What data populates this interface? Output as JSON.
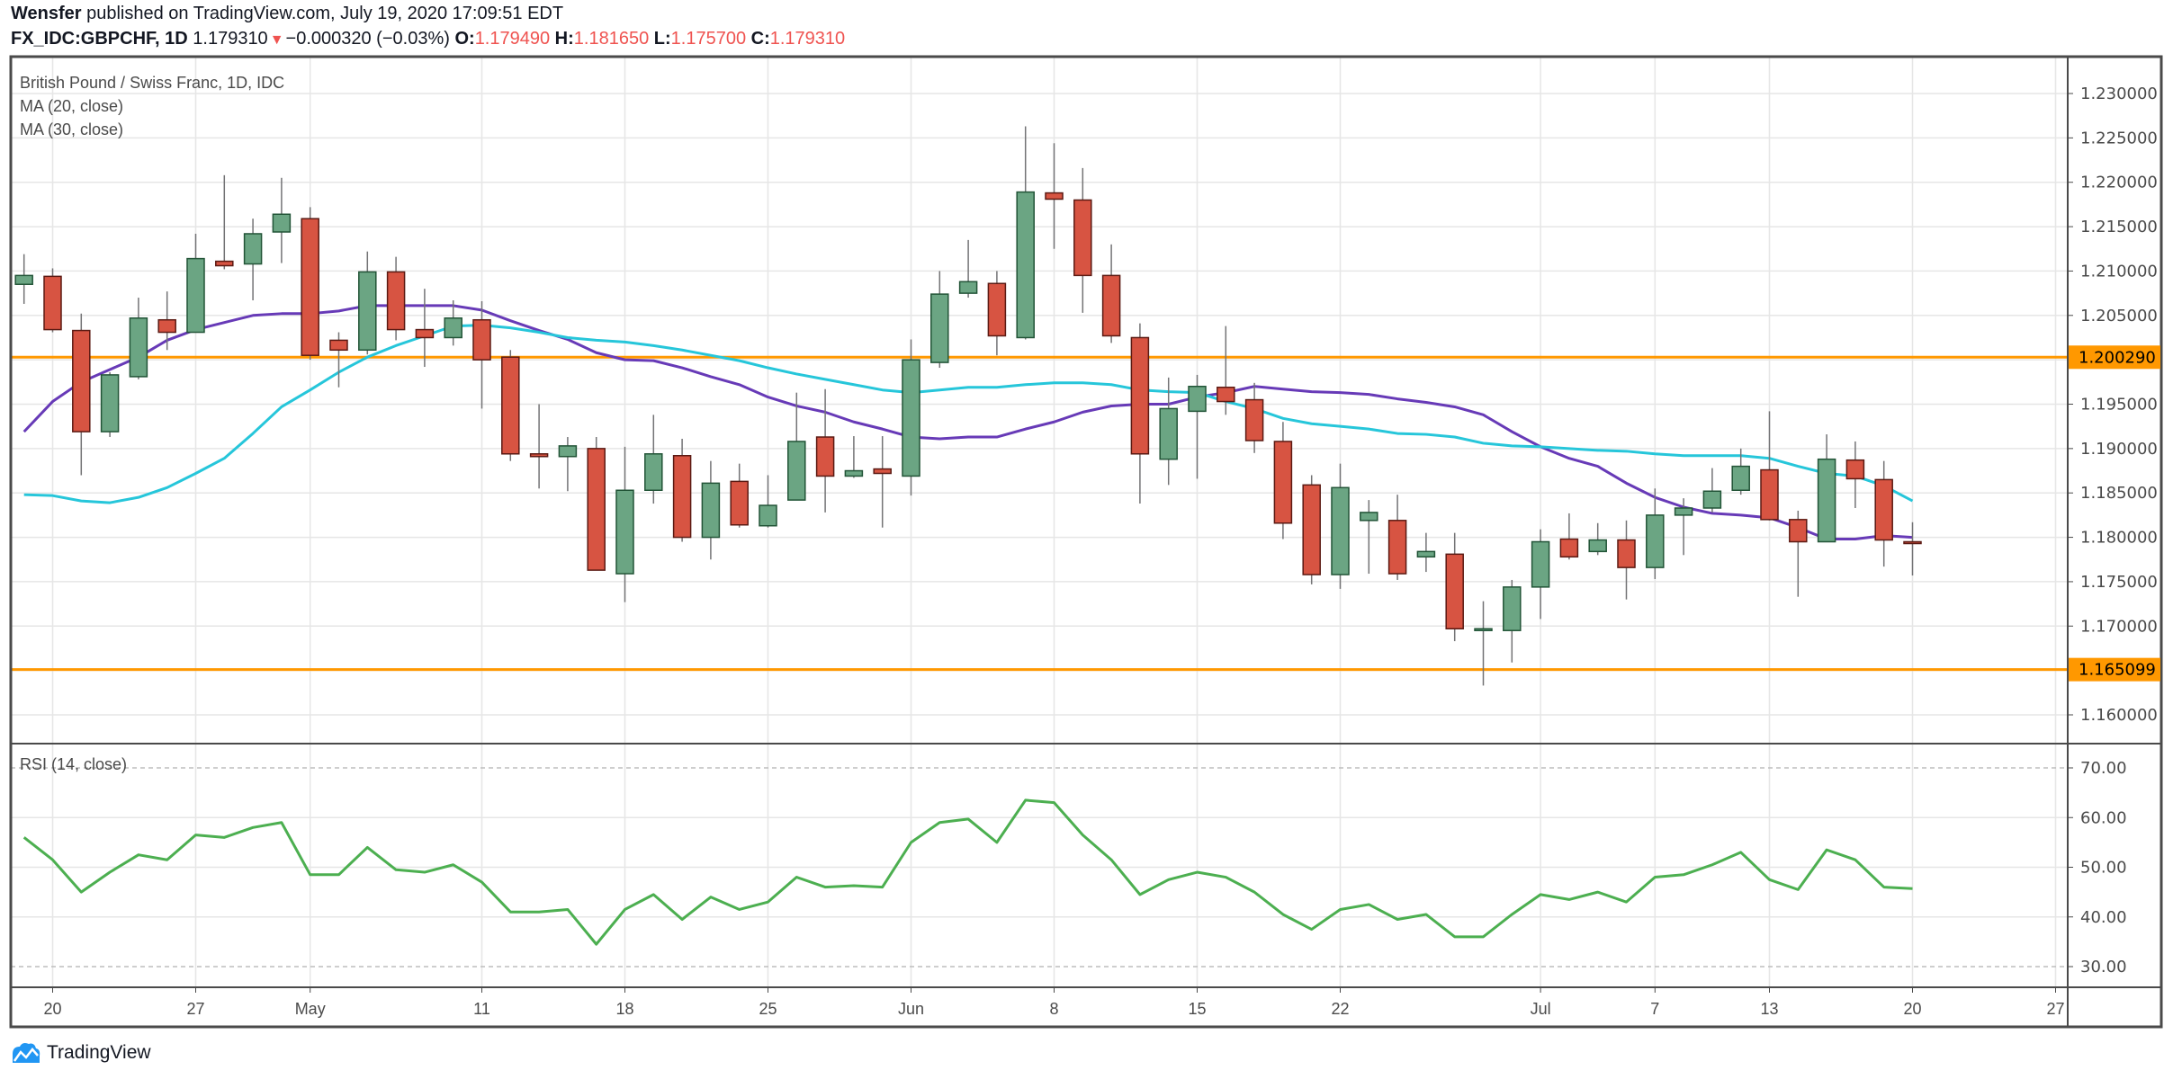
{
  "header": {
    "author": "Wensfer",
    "published": "published on TradingView.com, July 19, 2020 17:09:51 EDT",
    "symbol": "FX_IDC:GBPCHF, 1D",
    "last": "1.179310",
    "change": "−0.000320 (−0.03%)",
    "change_direction": "down",
    "o_label": "O:",
    "o": "1.179490",
    "h_label": "H:",
    "h": "1.181650",
    "l_label": "L:",
    "l": "1.175700",
    "c_label": "C:",
    "c": "1.179310"
  },
  "legend": {
    "title": "British Pound / Swiss Franc, 1D, IDC",
    "ma20": "MA (20, close)",
    "ma30": "MA (30, close)",
    "rsi": "RSI (14, close)"
  },
  "footer": {
    "brand": "TradingView",
    "logo_icon": "tradingview-cloud-icon"
  },
  "colors": {
    "up": "#6ba583",
    "down": "#d75442",
    "ma20": "#673ab7",
    "ma30": "#26c6da",
    "rsi": "#4caf50",
    "level": "#ff9800"
  },
  "chart_data": [
    {
      "type": "candlestick",
      "ylim": [
        1.157,
        1.233
      ],
      "grid": true,
      "y_ticks": [
        "1.230000",
        "1.225000",
        "1.220000",
        "1.215000",
        "1.210000",
        "1.205000",
        "1.195000",
        "1.190000",
        "1.185000",
        "1.180000",
        "1.175000",
        "1.170000",
        "1.160000"
      ],
      "x_ticks": [
        {
          "label": "20",
          "date": "2020-04-20"
        },
        {
          "label": "27",
          "date": "2020-04-27"
        },
        {
          "label": "May",
          "date": "2020-05-01"
        },
        {
          "label": "11",
          "date": "2020-05-11"
        },
        {
          "label": "18",
          "date": "2020-05-18"
        },
        {
          "label": "25",
          "date": "2020-05-25"
        },
        {
          "label": "Jun",
          "date": "2020-06-01"
        },
        {
          "label": "8",
          "date": "2020-06-08"
        },
        {
          "label": "15",
          "date": "2020-06-15"
        },
        {
          "label": "22",
          "date": "2020-06-22"
        },
        {
          "label": "Jul",
          "date": "2020-07-01"
        },
        {
          "label": "7",
          "date": "2020-07-07"
        },
        {
          "label": "13",
          "date": "2020-07-13"
        },
        {
          "label": "20",
          "date": "2020-07-20"
        },
        {
          "label": "27",
          "date": "2020-07-27"
        }
      ],
      "horizontal_levels": [
        {
          "value": 1.20029,
          "label": "1.200290"
        },
        {
          "value": 1.165099,
          "label": "1.165099"
        }
      ],
      "candles": [
        {
          "d": "2020-04-17",
          "o": 1.2085,
          "h": 1.2119,
          "l": 1.2063,
          "c": 1.2095
        },
        {
          "d": "2020-04-20",
          "o": 1.2094,
          "h": 1.2103,
          "l": 1.2031,
          "c": 1.2034
        },
        {
          "d": "2020-04-21",
          "o": 1.2033,
          "h": 1.2052,
          "l": 1.187,
          "c": 1.1919
        },
        {
          "d": "2020-04-22",
          "o": 1.1919,
          "h": 1.1986,
          "l": 1.1913,
          "c": 1.1983
        },
        {
          "d": "2020-04-23",
          "o": 1.1981,
          "h": 1.207,
          "l": 1.1978,
          "c": 1.2047
        },
        {
          "d": "2020-04-24",
          "o": 1.2045,
          "h": 1.2077,
          "l": 1.2011,
          "c": 1.2031
        },
        {
          "d": "2020-04-27",
          "o": 1.2031,
          "h": 1.2142,
          "l": 1.2031,
          "c": 1.2114
        },
        {
          "d": "2020-04-28",
          "o": 1.2111,
          "h": 1.2208,
          "l": 1.2102,
          "c": 1.2106
        },
        {
          "d": "2020-04-29",
          "o": 1.2108,
          "h": 1.2159,
          "l": 1.2067,
          "c": 1.2142
        },
        {
          "d": "2020-04-30",
          "o": 1.2144,
          "h": 1.2205,
          "l": 1.2109,
          "c": 1.2164
        },
        {
          "d": "2020-05-01",
          "o": 1.2159,
          "h": 1.2172,
          "l": 1.2,
          "c": 1.2005
        },
        {
          "d": "2020-05-04",
          "o": 1.2022,
          "h": 1.2031,
          "l": 1.1969,
          "c": 1.2011
        },
        {
          "d": "2020-05-05",
          "o": 1.2011,
          "h": 1.2122,
          "l": 1.2006,
          "c": 1.2099
        },
        {
          "d": "2020-05-06",
          "o": 1.2099,
          "h": 1.2116,
          "l": 1.2022,
          "c": 1.2034
        },
        {
          "d": "2020-05-07",
          "o": 1.2034,
          "h": 1.208,
          "l": 1.1992,
          "c": 1.2025
        },
        {
          "d": "2020-05-08",
          "o": 1.2025,
          "h": 1.2067,
          "l": 1.2016,
          "c": 1.2047
        },
        {
          "d": "2020-05-11",
          "o": 1.2045,
          "h": 1.2066,
          "l": 1.1945,
          "c": 1.2
        },
        {
          "d": "2020-05-12",
          "o": 1.2003,
          "h": 1.2011,
          "l": 1.1886,
          "c": 1.1894
        },
        {
          "d": "2020-05-13",
          "o": 1.1894,
          "h": 1.195,
          "l": 1.1855,
          "c": 1.1891
        },
        {
          "d": "2020-05-14",
          "o": 1.1891,
          "h": 1.1913,
          "l": 1.1852,
          "c": 1.1903
        },
        {
          "d": "2020-05-15",
          "o": 1.19,
          "h": 1.1913,
          "l": 1.1763,
          "c": 1.1763
        },
        {
          "d": "2020-05-18",
          "o": 1.1759,
          "h": 1.1902,
          "l": 1.1727,
          "c": 1.1853
        },
        {
          "d": "2020-05-19",
          "o": 1.1853,
          "h": 1.1938,
          "l": 1.1838,
          "c": 1.1894
        },
        {
          "d": "2020-05-20",
          "o": 1.1892,
          "h": 1.1911,
          "l": 1.1795,
          "c": 1.18
        },
        {
          "d": "2020-05-21",
          "o": 1.18,
          "h": 1.1886,
          "l": 1.1775,
          "c": 1.1861
        },
        {
          "d": "2020-05-22",
          "o": 1.1863,
          "h": 1.1883,
          "l": 1.1811,
          "c": 1.1814
        },
        {
          "d": "2020-05-25",
          "o": 1.1813,
          "h": 1.187,
          "l": 1.1811,
          "c": 1.1836
        },
        {
          "d": "2020-05-26",
          "o": 1.1842,
          "h": 1.1963,
          "l": 1.1842,
          "c": 1.1908
        },
        {
          "d": "2020-05-27",
          "o": 1.1913,
          "h": 1.1967,
          "l": 1.1828,
          "c": 1.1869
        },
        {
          "d": "2020-05-28",
          "o": 1.1869,
          "h": 1.1914,
          "l": 1.1867,
          "c": 1.1875
        },
        {
          "d": "2020-05-29",
          "o": 1.1877,
          "h": 1.1914,
          "l": 1.1811,
          "c": 1.1872
        },
        {
          "d": "2020-06-01",
          "o": 1.1869,
          "h": 1.2023,
          "l": 1.1847,
          "c": 1.2
        },
        {
          "d": "2020-06-02",
          "o": 1.1997,
          "h": 1.21,
          "l": 1.1991,
          "c": 1.2074
        },
        {
          "d": "2020-06-03",
          "o": 1.2075,
          "h": 1.2135,
          "l": 1.207,
          "c": 1.2088
        },
        {
          "d": "2020-06-04",
          "o": 1.2086,
          "h": 1.21,
          "l": 1.2005,
          "c": 1.2027
        },
        {
          "d": "2020-06-05",
          "o": 1.2025,
          "h": 1.2263,
          "l": 1.2023,
          "c": 1.2189
        },
        {
          "d": "2020-06-08",
          "o": 1.2188,
          "h": 1.2244,
          "l": 1.2125,
          "c": 1.2181
        },
        {
          "d": "2020-06-09",
          "o": 1.218,
          "h": 1.2216,
          "l": 1.2053,
          "c": 1.2095
        },
        {
          "d": "2020-06-10",
          "o": 1.2095,
          "h": 1.213,
          "l": 1.2019,
          "c": 1.2027
        },
        {
          "d": "2020-06-11",
          "o": 1.2025,
          "h": 1.2041,
          "l": 1.1838,
          "c": 1.1894
        },
        {
          "d": "2020-06-12",
          "o": 1.1888,
          "h": 1.198,
          "l": 1.1859,
          "c": 1.1945
        },
        {
          "d": "2020-06-15",
          "o": 1.1942,
          "h": 1.1983,
          "l": 1.1866,
          "c": 1.197
        },
        {
          "d": "2020-06-16",
          "o": 1.1969,
          "h": 1.2038,
          "l": 1.1938,
          "c": 1.1953
        },
        {
          "d": "2020-06-17",
          "o": 1.1955,
          "h": 1.1974,
          "l": 1.1895,
          "c": 1.1909
        },
        {
          "d": "2020-06-18",
          "o": 1.1908,
          "h": 1.193,
          "l": 1.1798,
          "c": 1.1816
        },
        {
          "d": "2020-06-19",
          "o": 1.1859,
          "h": 1.187,
          "l": 1.1747,
          "c": 1.1758
        },
        {
          "d": "2020-06-22",
          "o": 1.1758,
          "h": 1.1883,
          "l": 1.1742,
          "c": 1.1856
        },
        {
          "d": "2020-06-23",
          "o": 1.1819,
          "h": 1.1842,
          "l": 1.1759,
          "c": 1.1828
        },
        {
          "d": "2020-06-24",
          "o": 1.1819,
          "h": 1.1848,
          "l": 1.1752,
          "c": 1.1759
        },
        {
          "d": "2020-06-25",
          "o": 1.1778,
          "h": 1.1805,
          "l": 1.1761,
          "c": 1.1784
        },
        {
          "d": "2020-06-26",
          "o": 1.1781,
          "h": 1.1805,
          "l": 1.1683,
          "c": 1.1697
        },
        {
          "d": "2020-06-29",
          "o": 1.1697,
          "h": 1.1728,
          "l": 1.1633,
          "c": 1.1697
        },
        {
          "d": "2020-06-30",
          "o": 1.1695,
          "h": 1.1752,
          "l": 1.1659,
          "c": 1.1744
        },
        {
          "d": "2020-07-01",
          "o": 1.1744,
          "h": 1.1809,
          "l": 1.1708,
          "c": 1.1795
        },
        {
          "d": "2020-07-02",
          "o": 1.1798,
          "h": 1.1827,
          "l": 1.1775,
          "c": 1.1778
        },
        {
          "d": "2020-07-03",
          "o": 1.1784,
          "h": 1.1816,
          "l": 1.178,
          "c": 1.1797
        },
        {
          "d": "2020-07-06",
          "o": 1.1797,
          "h": 1.1819,
          "l": 1.173,
          "c": 1.1766
        },
        {
          "d": "2020-07-07",
          "o": 1.1766,
          "h": 1.1855,
          "l": 1.1753,
          "c": 1.1825
        },
        {
          "d": "2020-07-08",
          "o": 1.1825,
          "h": 1.1844,
          "l": 1.178,
          "c": 1.1833
        },
        {
          "d": "2020-07-09",
          "o": 1.1833,
          "h": 1.1878,
          "l": 1.1828,
          "c": 1.1852
        },
        {
          "d": "2020-07-10",
          "o": 1.1853,
          "h": 1.19,
          "l": 1.1848,
          "c": 1.188
        },
        {
          "d": "2020-07-13",
          "o": 1.1876,
          "h": 1.1942,
          "l": 1.1819,
          "c": 1.182
        },
        {
          "d": "2020-07-14",
          "o": 1.182,
          "h": 1.183,
          "l": 1.1733,
          "c": 1.1795
        },
        {
          "d": "2020-07-15",
          "o": 1.1795,
          "h": 1.1916,
          "l": 1.1795,
          "c": 1.1888
        },
        {
          "d": "2020-07-16",
          "o": 1.1887,
          "h": 1.1908,
          "l": 1.1833,
          "c": 1.1866
        },
        {
          "d": "2020-07-17",
          "o": 1.1865,
          "h": 1.1886,
          "l": 1.1767,
          "c": 1.1797
        },
        {
          "d": "2020-07-20",
          "o": 1.1795,
          "h": 1.1817,
          "l": 1.1757,
          "c": 1.1793
        }
      ],
      "series": [
        {
          "name": "MA (20, close)",
          "values": [
            1.1919,
            1.1953,
            1.1975,
            1.1989,
            1.2003,
            1.2022,
            1.2034,
            1.2042,
            1.205,
            1.2052,
            1.2052,
            1.2055,
            1.2061,
            1.2061,
            1.2061,
            1.2061,
            1.2056,
            1.2044,
            1.2033,
            1.2023,
            1.2008,
            1.2,
            1.1999,
            1.1991,
            1.1981,
            1.1972,
            1.1958,
            1.1948,
            1.1941,
            1.193,
            1.1922,
            1.1913,
            1.1911,
            1.1913,
            1.1913,
            1.1922,
            1.193,
            1.1941,
            1.1948,
            1.195,
            1.195,
            1.1958,
            1.1963,
            1.197,
            1.1967,
            1.1964,
            1.1963,
            1.1961,
            1.1956,
            1.1952,
            1.1947,
            1.1938,
            1.1919,
            1.1902,
            1.1889,
            1.188,
            1.1861,
            1.1845,
            1.1834,
            1.1827,
            1.1825,
            1.1822,
            1.1811,
            1.1798,
            1.1798,
            1.1802,
            1.18
          ]
        },
        {
          "name": "MA (30, close)",
          "values": [
            1.1848,
            1.1847,
            1.1841,
            1.1839,
            1.1845,
            1.1856,
            1.1872,
            1.1889,
            1.1917,
            1.1947,
            1.1966,
            1.1986,
            1.2003,
            1.2016,
            1.2027,
            1.2038,
            1.2039,
            1.2036,
            1.2031,
            1.2025,
            1.2022,
            1.202,
            1.2016,
            1.2011,
            1.2005,
            1.1999,
            1.1991,
            1.1984,
            1.1978,
            1.1972,
            1.1966,
            1.1963,
            1.1966,
            1.1969,
            1.1969,
            1.1972,
            1.1974,
            1.1974,
            1.1972,
            1.1966,
            1.1964,
            1.1963,
            1.1953,
            1.1945,
            1.1934,
            1.1928,
            1.1925,
            1.1922,
            1.1917,
            1.1916,
            1.1913,
            1.1906,
            1.1903,
            1.1902,
            1.19,
            1.1898,
            1.1897,
            1.1894,
            1.1892,
            1.1892,
            1.1892,
            1.1889,
            1.188,
            1.1872,
            1.1869,
            1.1858,
            1.1841
          ]
        }
      ]
    },
    {
      "type": "line",
      "title": "RSI (14, close)",
      "ylim": [
        26,
        74
      ],
      "y_ticks": [
        "70.00",
        "60.00",
        "50.00",
        "40.00",
        "30.00"
      ],
      "dashed_levels": [
        70,
        30
      ],
      "series": [
        {
          "name": "RSI (14, close)",
          "values": [
            56,
            51.5,
            45,
            49,
            52.5,
            51.5,
            56.5,
            56,
            58,
            59,
            48.5,
            48.5,
            54,
            49.5,
            49,
            50.5,
            47,
            41,
            41,
            41.5,
            34.5,
            41.5,
            44.5,
            39.5,
            44,
            41.5,
            43,
            48,
            46,
            46.3,
            46,
            55,
            59,
            59.7,
            55,
            63.5,
            63,
            56.5,
            51.5,
            44.5,
            47.5,
            49,
            48,
            45,
            40.5,
            37.5,
            41.5,
            42.5,
            39.5,
            40.5,
            36,
            36,
            40.5,
            44.5,
            43.5,
            45,
            43,
            48,
            48.5,
            50.5,
            53,
            47.5,
            45.5,
            53.5,
            51.5,
            46,
            45.7
          ]
        }
      ]
    }
  ]
}
